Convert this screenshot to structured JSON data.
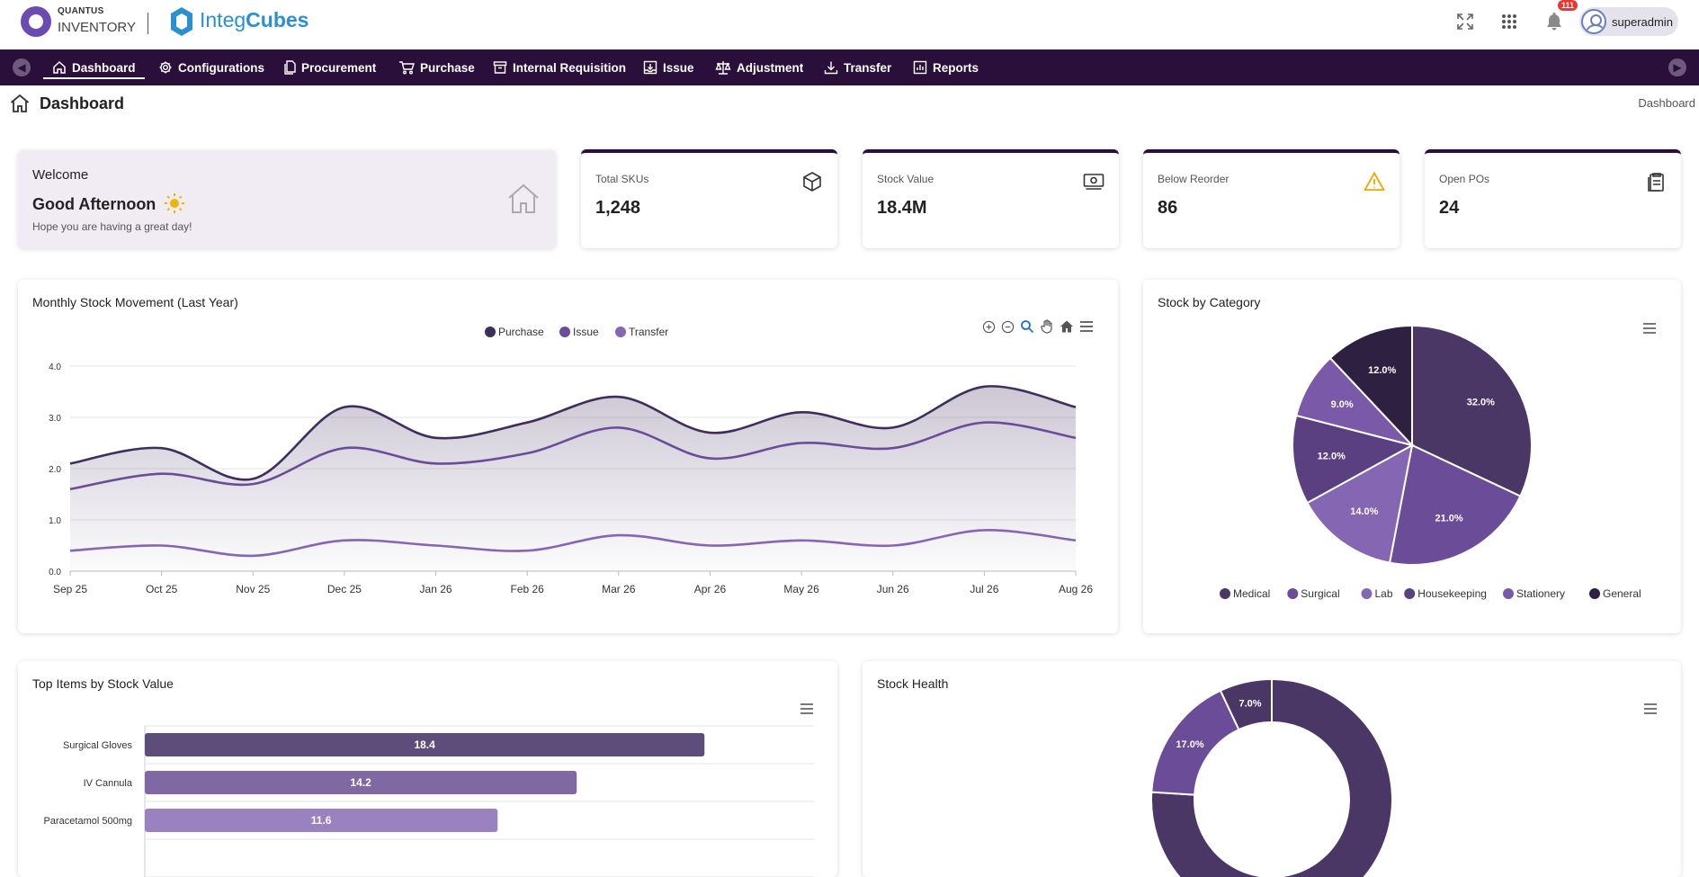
{
  "brand": {
    "top": "QUANTUS",
    "bottom": "INVENTORY",
    "logo_name_part1": "Integ",
    "logo_name_part2": "Cubes"
  },
  "header": {
    "notification_count": "111",
    "username": "superadmin"
  },
  "nav": {
    "items": [
      {
        "label": "Dashboard",
        "icon": "home-icon"
      },
      {
        "label": "Configurations",
        "icon": "gear-icon"
      },
      {
        "label": "Procurement",
        "icon": "document-icon"
      },
      {
        "label": "Purchase",
        "icon": "cart-icon"
      },
      {
        "label": "Internal Requisition",
        "icon": "archive-icon"
      },
      {
        "label": "Issue",
        "icon": "inbox-icon"
      },
      {
        "label": "Adjustment",
        "icon": "scale-icon"
      },
      {
        "label": "Transfer",
        "icon": "download-icon"
      },
      {
        "label": "Reports",
        "icon": "report-icon"
      }
    ]
  },
  "page": {
    "title": "Dashboard",
    "breadcrumb": "Dashboard"
  },
  "welcome": {
    "line1": "Welcome",
    "line2": "Good Afternoon",
    "line3": "Hope you are having a great day!"
  },
  "stats": [
    {
      "label": "Total SKUs",
      "value": "1,248",
      "icon": "box-icon"
    },
    {
      "label": "Stock Value",
      "value": "18.4M",
      "icon": "money-icon"
    },
    {
      "label": "Below Reorder",
      "value": "86",
      "icon": "warning-icon"
    },
    {
      "label": "Open POs",
      "value": "24",
      "icon": "clipboard-icon"
    }
  ],
  "panels": {
    "movement_title": "Monthly Stock Movement (Last Year)",
    "category_title": "Stock by Category",
    "top_items_title": "Top Items by Stock Value",
    "health_title": "Stock Health"
  },
  "colors": {
    "nav_bg": "#2a0f3a",
    "accent": "#4a3766",
    "purple2": "#6b4c99",
    "purple3": "#8566b3",
    "warning": "#f0a500",
    "brand_blue": "#2b8fd0"
  },
  "chart_data": [
    {
      "type": "area",
      "title": "Monthly Stock Movement (Last Year)",
      "categories": [
        "Sep 25",
        "Oct 25",
        "Nov 25",
        "Dec 25",
        "Jan 26",
        "Feb 26",
        "Mar 26",
        "Apr 26",
        "May 26",
        "Jun 26",
        "Jul 26",
        "Aug 26"
      ],
      "ylim": [
        0,
        4
      ],
      "yticks": [
        "0.0",
        "1.0",
        "2.0",
        "3.0",
        "4.0"
      ],
      "legend": "top-center",
      "grid": true,
      "series": [
        {
          "name": "Purchase",
          "color": "#3f2d5c",
          "values": [
            2.1,
            2.4,
            1.8,
            3.2,
            2.6,
            2.9,
            3.4,
            2.7,
            3.1,
            2.8,
            3.6,
            3.2
          ]
        },
        {
          "name": "Issue",
          "color": "#6b4c99",
          "values": [
            1.6,
            1.9,
            1.7,
            2.4,
            2.1,
            2.3,
            2.8,
            2.2,
            2.5,
            2.4,
            2.9,
            2.6
          ]
        },
        {
          "name": "Transfer",
          "color": "#8566b3",
          "values": [
            0.4,
            0.5,
            0.3,
            0.6,
            0.5,
            0.4,
            0.7,
            0.5,
            0.6,
            0.5,
            0.8,
            0.6
          ]
        }
      ]
    },
    {
      "type": "pie",
      "title": "Stock by Category",
      "legend": "bottom",
      "slices": [
        {
          "name": "Medical",
          "value": 32.0,
          "label": "32.0%",
          "color": "#4a3766"
        },
        {
          "name": "Surgical",
          "value": 21.0,
          "label": "21.0%",
          "color": "#6b4c99"
        },
        {
          "name": "Lab",
          "value": 14.0,
          "label": "14.0%",
          "color": "#8566b3"
        },
        {
          "name": "Housekeeping",
          "value": 12.0,
          "label": "12.0%",
          "color": "#5a4080"
        },
        {
          "name": "Stationery",
          "value": 9.0,
          "label": "9.0%",
          "color": "#7a5aa8"
        },
        {
          "name": "General",
          "value": 12.0,
          "label": "12.0%",
          "color": "#2e2040"
        }
      ]
    },
    {
      "type": "bar",
      "orientation": "horizontal",
      "title": "Top Items by Stock Value",
      "categories": [
        "Surgical Gloves",
        "IV Cannula",
        "Paracetamol 500mg"
      ],
      "values": [
        18.4,
        14.2,
        11.6
      ],
      "value_labels": [
        "18.4",
        "14.2",
        "11.6"
      ],
      "colors": [
        "#5e4d7a",
        "#8068a3",
        "#9a82bf"
      ],
      "xlim": [
        0,
        22
      ]
    },
    {
      "type": "pie",
      "subtype": "donut",
      "title": "Stock Health",
      "slices": [
        {
          "value": 76.0,
          "color": "#4a3766",
          "label": ""
        },
        {
          "value": 17.0,
          "color": "#6b4c99",
          "label": "17.0%"
        },
        {
          "value": 7.0,
          "color": "#4a3766",
          "label": "7.0%"
        }
      ]
    }
  ]
}
